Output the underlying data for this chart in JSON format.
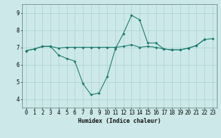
{
  "line1_x": [
    0,
    1,
    2,
    3,
    4,
    5,
    6,
    7,
    8,
    9,
    10,
    11,
    12,
    13,
    14,
    15,
    16,
    17,
    18,
    19,
    20,
    21,
    22
  ],
  "line1_y": [
    6.8,
    6.9,
    7.05,
    7.05,
    6.55,
    6.35,
    6.2,
    4.9,
    4.25,
    4.35,
    5.3,
    6.9,
    7.8,
    8.85,
    8.6,
    7.25,
    7.25,
    6.9,
    6.85,
    6.85,
    6.95,
    7.1,
    7.45
  ],
  "line2_x": [
    0,
    1,
    2,
    3,
    4,
    5,
    6,
    7,
    8,
    9,
    10,
    11,
    12,
    13,
    14,
    15,
    16,
    17,
    18,
    19,
    20,
    21,
    22,
    23
  ],
  "line2_y": [
    6.8,
    6.9,
    7.05,
    7.05,
    6.95,
    7.0,
    7.0,
    7.0,
    7.0,
    7.0,
    7.0,
    7.0,
    7.05,
    7.15,
    7.0,
    7.05,
    7.0,
    6.9,
    6.85,
    6.85,
    6.95,
    7.1,
    7.45,
    7.5
  ],
  "line_color": "#1a7a6e",
  "background_color": "#cce8e8",
  "grid_color": "#aad0d0",
  "xlim": [
    -0.5,
    23.5
  ],
  "ylim": [
    3.5,
    9.5
  ],
  "yticks": [
    4,
    5,
    6,
    7,
    8,
    9
  ],
  "xticks": [
    0,
    1,
    2,
    3,
    4,
    5,
    6,
    7,
    8,
    9,
    10,
    11,
    12,
    13,
    14,
    15,
    16,
    17,
    18,
    19,
    20,
    21,
    22,
    23
  ],
  "xlabel": "Humidex (Indice chaleur)",
  "xlabel_fontsize": 6.0,
  "tick_fontsize": 5.5
}
